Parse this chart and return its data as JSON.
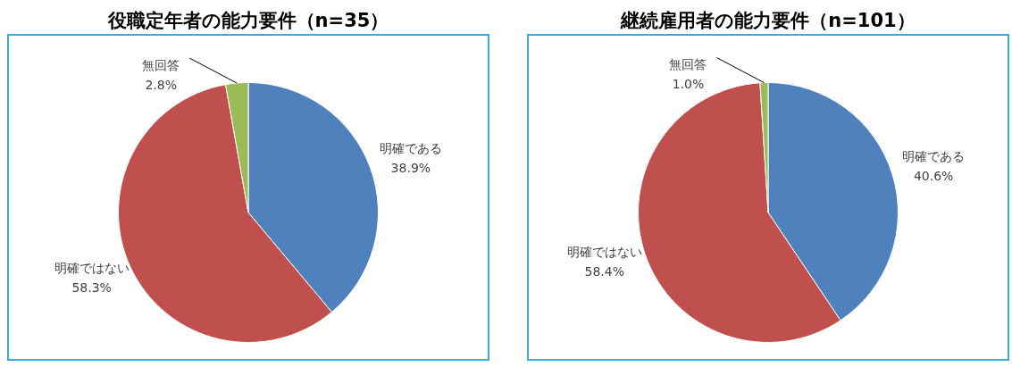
{
  "chart_data": [
    {
      "type": "pie",
      "title": "役職定年者の能力要件（n=35）",
      "categories": [
        "明確である",
        "明確ではない",
        "無回答"
      ],
      "values": [
        38.9,
        58.3,
        2.8
      ],
      "colors": [
        "#4f81bd",
        "#c0504d",
        "#9bbb59"
      ],
      "value_labels": [
        "38.9%",
        "58.3%",
        "2.8%"
      ]
    },
    {
      "type": "pie",
      "title": "継続雇用者の能力要件（n=101）",
      "categories": [
        "明確である",
        "明確ではない",
        "無回答"
      ],
      "values": [
        40.6,
        58.4,
        1.0
      ],
      "colors": [
        "#4f81bd",
        "#c0504d",
        "#9bbb59"
      ],
      "value_labels": [
        "40.6%",
        "58.4%",
        "1.0%"
      ]
    }
  ]
}
